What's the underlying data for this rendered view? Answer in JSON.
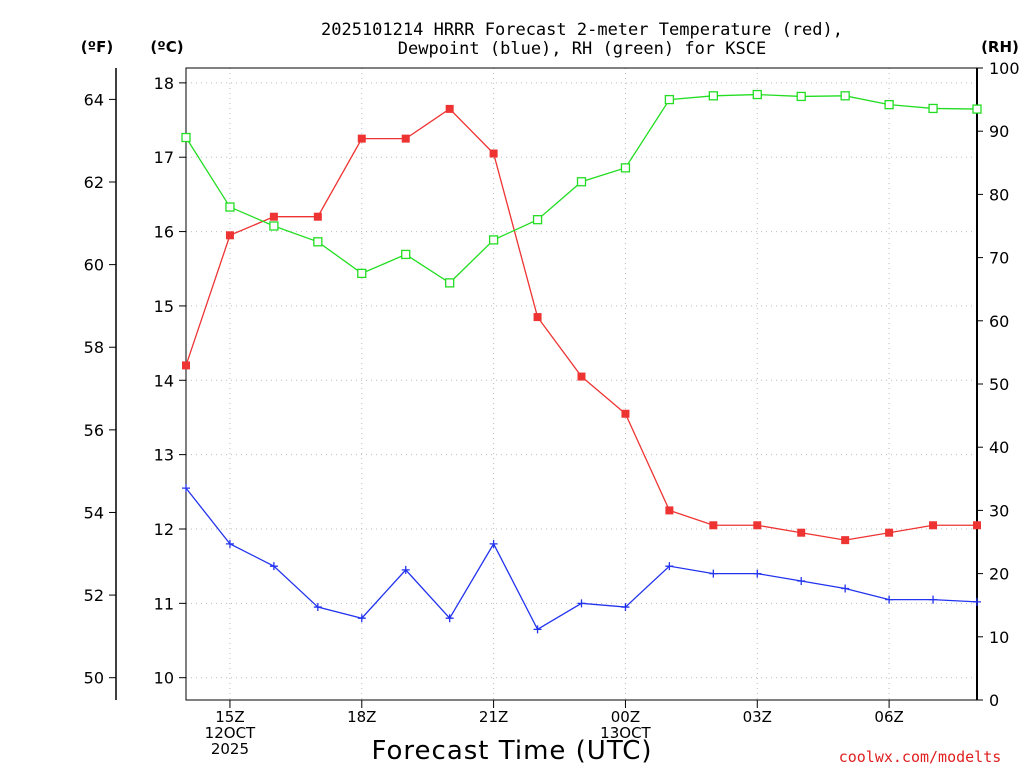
{
  "chart_data": {
    "type": "line",
    "title_lines": [
      "2025101214 HRRR Forecast 2-meter Temperature (red),",
      "Dewpoint (blue), RH (green) for KSCE"
    ],
    "axes_units": {
      "fahrenheit": "(ºF)",
      "celsius": "(ºC)",
      "rh": "(RH)"
    },
    "xlabel": "Forecast Time (UTC)",
    "credit": "coolwx.com/modelts",
    "x_hours": [
      14,
      15,
      16,
      17,
      18,
      19,
      20,
      21,
      22,
      23,
      24,
      25,
      26,
      27,
      28,
      29,
      30,
      31,
      32
    ],
    "xlim": [
      14,
      32
    ],
    "x_ticks": [
      {
        "hour": 15,
        "lines": [
          "15Z",
          "12OCT",
          "2025"
        ]
      },
      {
        "hour": 18,
        "lines": [
          "18Z"
        ]
      },
      {
        "hour": 21,
        "lines": [
          "21Z"
        ]
      },
      {
        "hour": 24,
        "lines": [
          "00Z",
          "13OCT"
        ]
      },
      {
        "hour": 27,
        "lines": [
          "03Z"
        ]
      },
      {
        "hour": 30,
        "lines": [
          "06Z"
        ]
      }
    ],
    "celsius_lim": [
      9.7,
      18.2
    ],
    "celsius_ticks": [
      10,
      11,
      12,
      13,
      14,
      15,
      16,
      17,
      18
    ],
    "fahrenheit_ticks": [
      50,
      52,
      54,
      56,
      58,
      60,
      62,
      64
    ],
    "rh_lim": [
      0,
      100
    ],
    "rh_ticks": [
      0,
      10,
      20,
      30,
      40,
      50,
      60,
      70,
      80,
      90,
      100
    ],
    "series": [
      {
        "name": "2-meter Temperature",
        "axis": "celsius",
        "color": "#ee3333",
        "marker": "filled-square",
        "values": [
          14.2,
          15.95,
          16.2,
          16.2,
          17.25,
          17.25,
          17.65,
          17.05,
          14.85,
          14.05,
          13.55,
          12.25,
          12.05,
          12.05,
          11.95,
          11.85,
          11.95,
          12.05,
          12.05
        ]
      },
      {
        "name": "Dewpoint",
        "axis": "celsius",
        "color": "#2233ee",
        "marker": "plus",
        "values": [
          12.55,
          11.8,
          11.5,
          10.95,
          10.8,
          11.45,
          10.8,
          11.8,
          10.65,
          11.0,
          10.95,
          11.5,
          11.4,
          11.4,
          11.3,
          11.2,
          11.05,
          11.05,
          11.02
        ]
      },
      {
        "name": "Relative Humidity",
        "axis": "rh",
        "color": "#22dd22",
        "marker": "open-square",
        "values": [
          89,
          78,
          75,
          72.5,
          67.5,
          70.5,
          66,
          72.8,
          76,
          82,
          84.2,
          95,
          95.6,
          95.8,
          95.5,
          95.6,
          94.2,
          93.6,
          93.5
        ]
      }
    ]
  }
}
